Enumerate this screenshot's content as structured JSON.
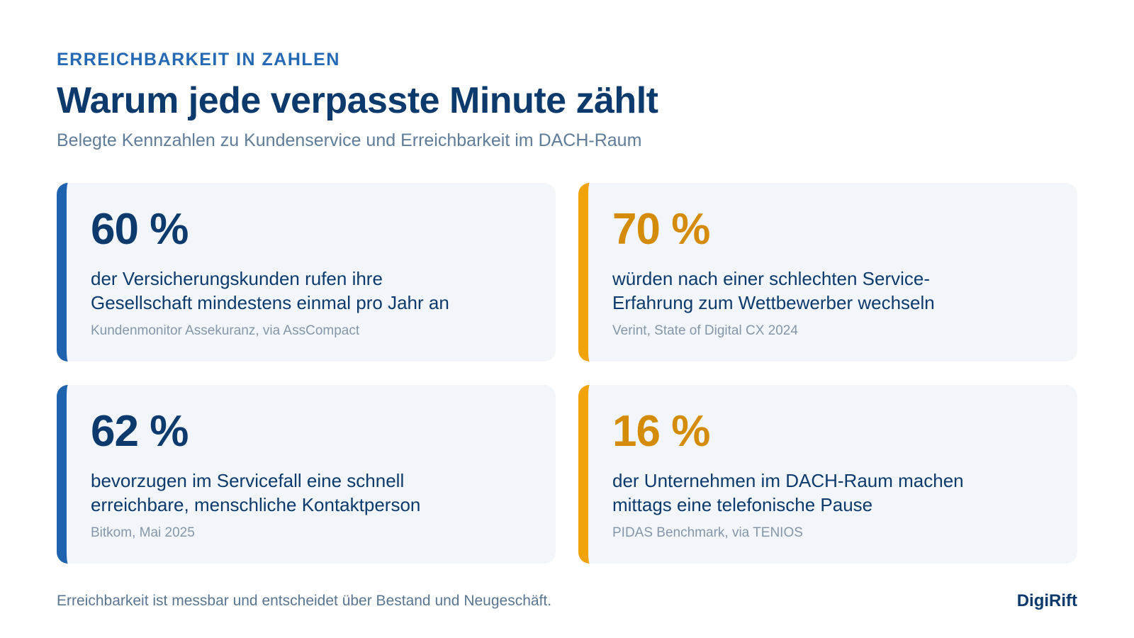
{
  "header": {
    "eyebrow": "ERREICHBARKEIT IN ZAHLEN",
    "title": "Warum jede verpasste Minute zählt",
    "subtitle": "Belegte Kennzahlen zu Kundenservice und Erreichbarkeit im DACH-Raum"
  },
  "cards": [
    {
      "value": "60 %",
      "description": [
        "der Versicherungskunden rufen ihre",
        "Gesellschaft mindestens einmal pro Jahr an"
      ],
      "source": "Kundenmonitor Assekuranz, via AssCompact"
    },
    {
      "value": "70 %",
      "description": [
        "würden nach einer schlechten Service-",
        "Erfahrung zum Wettbewerber wechseln"
      ],
      "source": "Verint, State of Digital CX 2024"
    },
    {
      "value": "62 %",
      "description": [
        "bevorzugen im Servicefall eine schnell",
        "erreichbare, menschliche Kontaktperson"
      ],
      "source": "Bitkom, Mai 2025"
    },
    {
      "value": "16 %",
      "description": [
        "der Unternehmen im DACH-Raum machen",
        "mittags eine telefonische Pause"
      ],
      "source": "PIDAS Benchmark, via TENIOS"
    }
  ],
  "footer": {
    "note": "Erreichbarkeit ist messbar und entscheidet über Bestand und Neugeschäft.",
    "brand": "DigiRift"
  }
}
